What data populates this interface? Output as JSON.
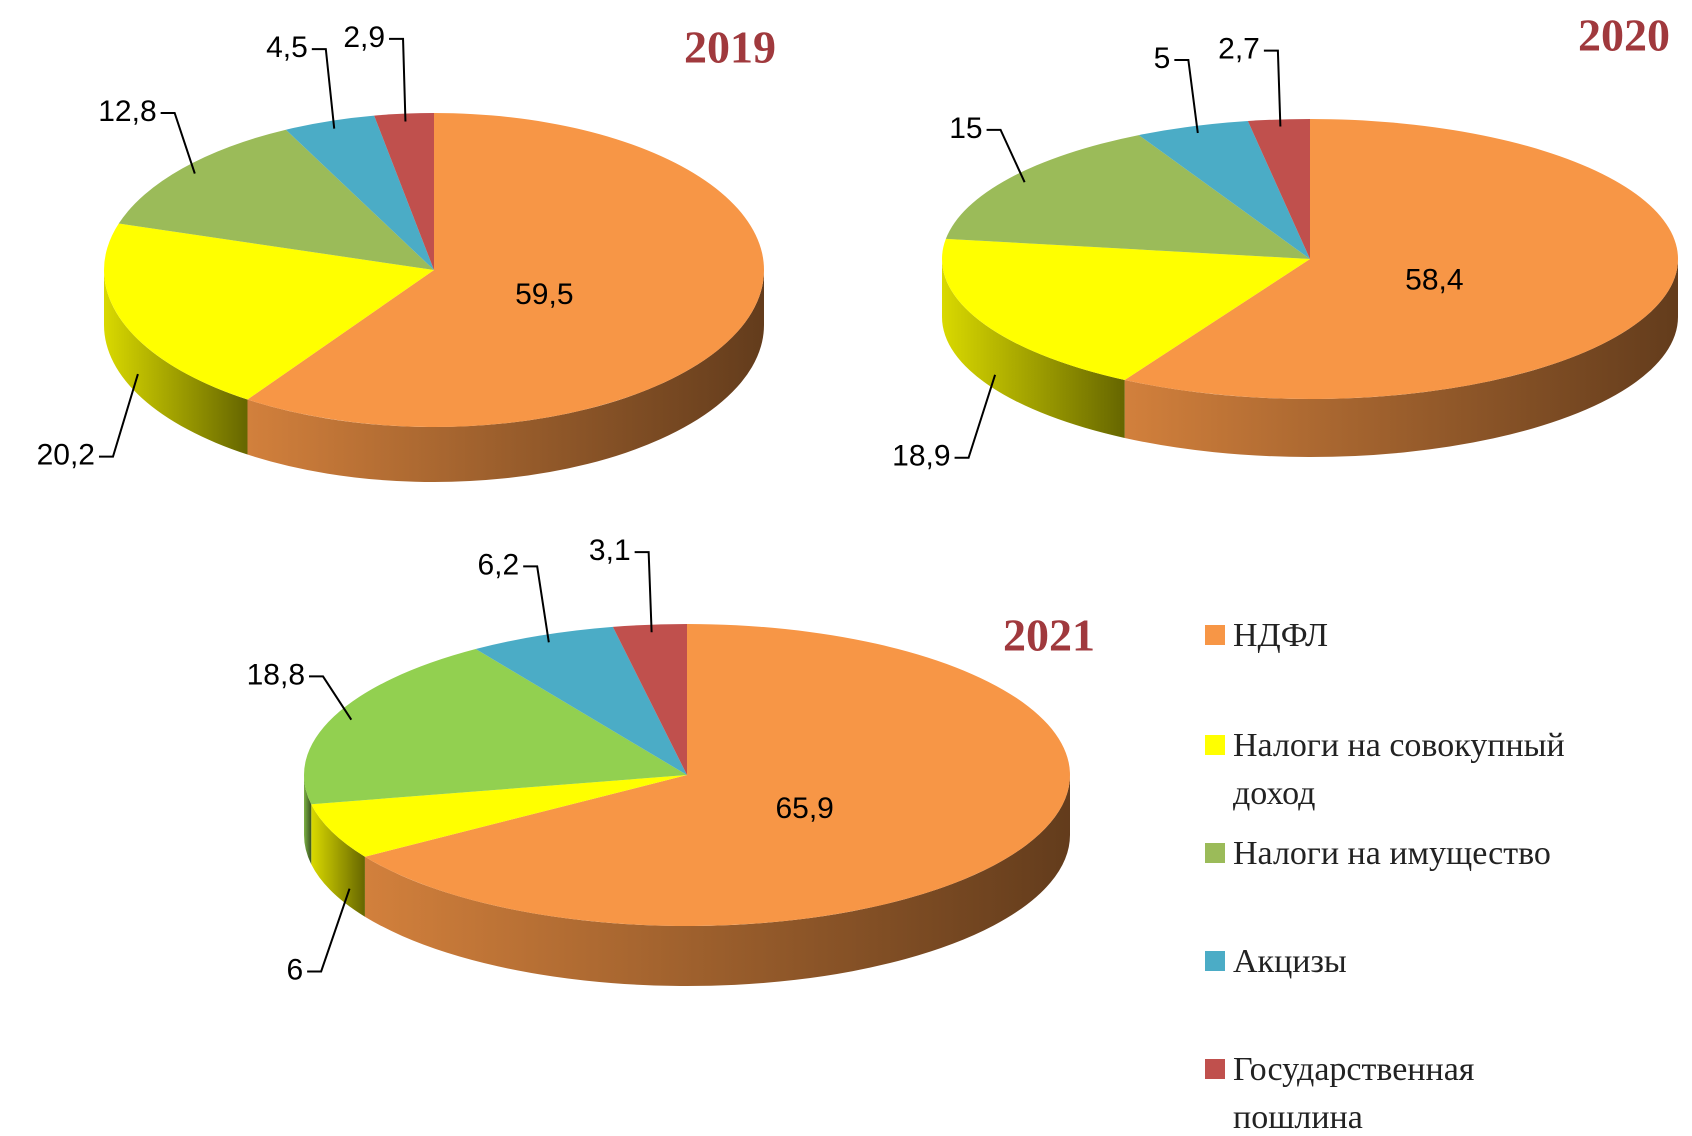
{
  "chart_data": [
    {
      "type": "pie",
      "title": "2019",
      "categories": [
        "НДФЛ",
        "Налоги на совокупный доход",
        "Налоги на имущество",
        "Акцизы",
        "Государственная пошлина"
      ],
      "values": [
        59.5,
        20.2,
        12.8,
        4.5,
        2.9
      ],
      "value_labels": [
        "59,5",
        "20,2",
        "12,8",
        "4,5",
        "2,9"
      ],
      "colors": [
        "#f79646",
        "#ffff00",
        "#9bbb59",
        "#4bacc6",
        "#c0504d"
      ]
    },
    {
      "type": "pie",
      "title": "2020",
      "categories": [
        "НДФЛ",
        "Налоги на совокупный доход",
        "Налоги на имущество",
        "Акцизы",
        "Государственная пошлина"
      ],
      "values": [
        58.4,
        18.9,
        15,
        5,
        2.7
      ],
      "value_labels": [
        "58,4",
        "18,9",
        "15",
        "5",
        "2,7"
      ],
      "colors": [
        "#f79646",
        "#ffff00",
        "#9bbb59",
        "#4bacc6",
        "#c0504d"
      ]
    },
    {
      "type": "pie",
      "title": "2021",
      "categories": [
        "НДФЛ",
        "Налоги на совокупный доход",
        "Налоги на имущество",
        "Акцизы",
        "Государственная пошлина"
      ],
      "values": [
        65.9,
        6,
        18.8,
        6.2,
        3.1
      ],
      "value_labels": [
        "65,9",
        "6",
        "18,8",
        "6,2",
        "3,1"
      ],
      "colors": [
        "#f79646",
        "#ffff00",
        "#92d050",
        "#4bacc6",
        "#c0504d"
      ]
    }
  ]
}
